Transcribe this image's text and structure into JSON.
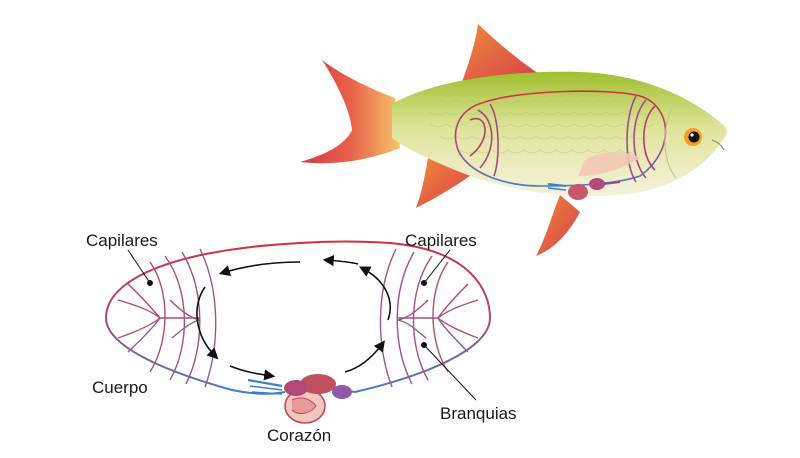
{
  "labels": {
    "capillaries_left": "Capilares",
    "capillaries_right": "Capilares",
    "body": "Cuerpo",
    "gills": "Branquias",
    "heart": "Corazón"
  },
  "colors": {
    "oxygenated_blood": "#d2343f",
    "deoxygenated_blood": "#3f7fc6",
    "fish_body_top": "#a8c43a",
    "fish_belly": "#f3efd6",
    "fins": "#e05a4a",
    "arrows": "#111111",
    "heart": "#c04a5a"
  }
}
